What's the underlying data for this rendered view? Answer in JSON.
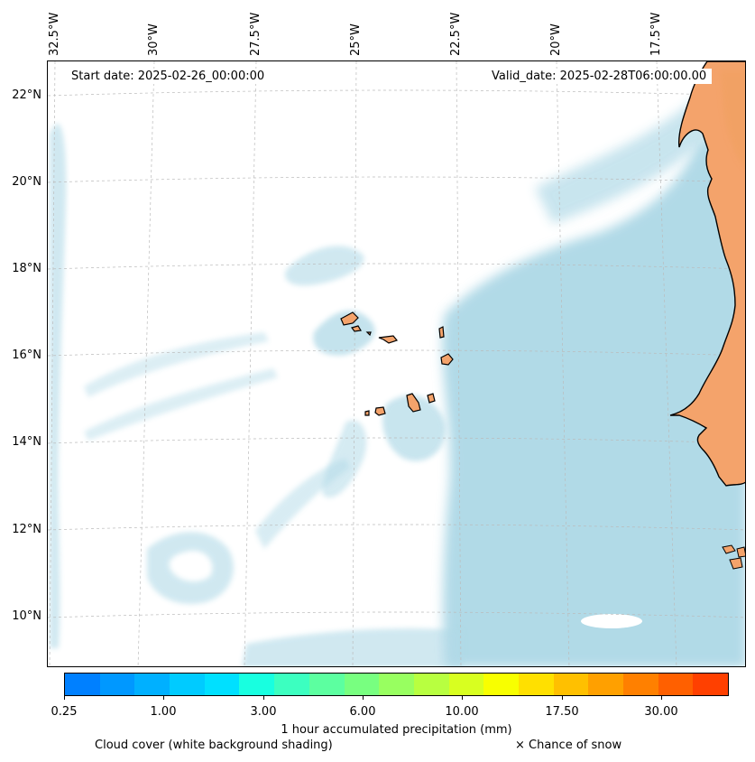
{
  "map": {
    "start_date": "Start date: 2025-02-26_00:00:00",
    "valid_date": "Valid_date: 2025-02-28T06:00:00.00",
    "longitude_labels": [
      "32.5°W",
      "30°W",
      "27.5°W",
      "25°W",
      "22.5°W",
      "20°W",
      "17.5°W"
    ],
    "latitude_labels": [
      "22°N",
      "20°N",
      "18°N",
      "16°N",
      "14°N",
      "12°N",
      "10°N"
    ],
    "colors": {
      "land": "#f4a36b",
      "land_inland": "#f0a060",
      "coastline": "#000000",
      "cloud_cover": "#add8e6",
      "gridline": "#bbbbbb"
    }
  },
  "colorbar": {
    "title": "1 hour accumulated precipitation (mm)",
    "tick_labels": [
      "0.25",
      "1.00",
      "3.00",
      "6.00",
      "10.00",
      "17.50",
      "30.00"
    ],
    "colors": [
      "#0080ff",
      "#0098ff",
      "#00b0ff",
      "#00cbff",
      "#00e0ff",
      "#18ffe0",
      "#3cffc0",
      "#5cffa0",
      "#78ff80",
      "#98ff60",
      "#b8ff40",
      "#d8ff20",
      "#f8ff00",
      "#ffe000",
      "#ffc000",
      "#ffa000",
      "#ff8000",
      "#ff6000",
      "#ff4000"
    ]
  },
  "legend": {
    "cloud_cover": "Cloud cover (white background shading)",
    "snow": "× Chance of snow"
  }
}
